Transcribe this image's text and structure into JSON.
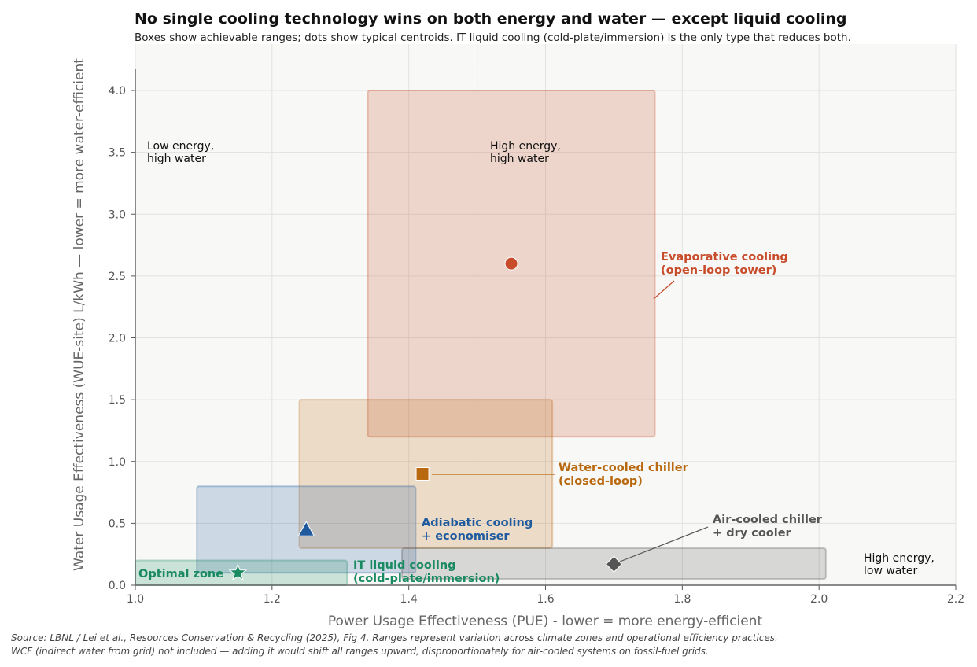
{
  "chart_data": {
    "type": "scatter",
    "title": "No single cooling technology wins on both energy and water — except liquid cooling",
    "subtitle": "Boxes show achievable ranges; dots show typical centroids. IT liquid cooling (cold-plate/immersion) is the only type that reduces both.",
    "xlabel": "Power Usage Effectiveness (PUE) - lower = more energy-efficient",
    "ylabel": "Water Usage Effectiveness (WUE-site)  L/kWh   — lower = more water-efficient",
    "xlim": [
      1.0,
      2.2
    ],
    "ylim": [
      0.0,
      4.25
    ],
    "xticks": [
      "1.0",
      "1.2",
      "1.4",
      "1.6",
      "1.8",
      "2.0",
      "2.2"
    ],
    "yticks": [
      "0.0",
      "0.5",
      "1.0",
      "1.5",
      "2.0",
      "2.5",
      "3.0",
      "3.5",
      "4.0"
    ],
    "grid": true,
    "reference_line_x": 1.5,
    "series": [
      {
        "name": "Evaporative cooling\n(open-loop tower)",
        "color": "#c84b2a",
        "marker": "circle",
        "x_range": [
          1.34,
          1.76
        ],
        "y_range": [
          1.2,
          4.0
        ],
        "centroid": [
          1.55,
          2.6
        ]
      },
      {
        "name": "Water-cooled chiller\n(closed-loop)",
        "color": "#b8680f",
        "marker": "square",
        "x_range": [
          1.24,
          1.61
        ],
        "y_range": [
          0.3,
          1.5
        ],
        "centroid": [
          1.42,
          0.9
        ]
      },
      {
        "name": "Adiabatic cooling\n+ economiser",
        "color": "#1f5a9e",
        "marker": "triangle",
        "x_range": [
          1.09,
          1.41
        ],
        "y_range": [
          0.1,
          0.8
        ],
        "centroid": [
          1.25,
          0.45
        ]
      },
      {
        "name": "Air-cooled chiller\n+ dry cooler",
        "color": "#555555",
        "marker": "diamond",
        "x_range": [
          1.39,
          2.01
        ],
        "y_range": [
          0.05,
          0.3
        ],
        "centroid": [
          1.7,
          0.17
        ]
      },
      {
        "name": "IT liquid cooling\n(cold-plate/immersion)",
        "color": "#1a8a62",
        "marker": "star",
        "x_range": [
          1.0,
          1.31
        ],
        "y_range": [
          0.0,
          0.2
        ],
        "centroid": [
          1.15,
          0.1
        ]
      }
    ],
    "annotations": {
      "quad_tl": "Low energy,\nhigh water",
      "quad_tr": "High energy,\nhigh water",
      "quad_br": "High energy,\nlow water",
      "optimal": "Optimal zone"
    }
  },
  "source": [
    "Source: LBNL / Lei et al., Resources Conservation & Recycling (2025), Fig 4. Ranges represent variation across climate zones and operational efficiency practices.",
    "WCF (indirect water from grid) not included — adding it would shift all ranges upward, disproportionately for air-cooled systems on fossil-fuel grids."
  ]
}
